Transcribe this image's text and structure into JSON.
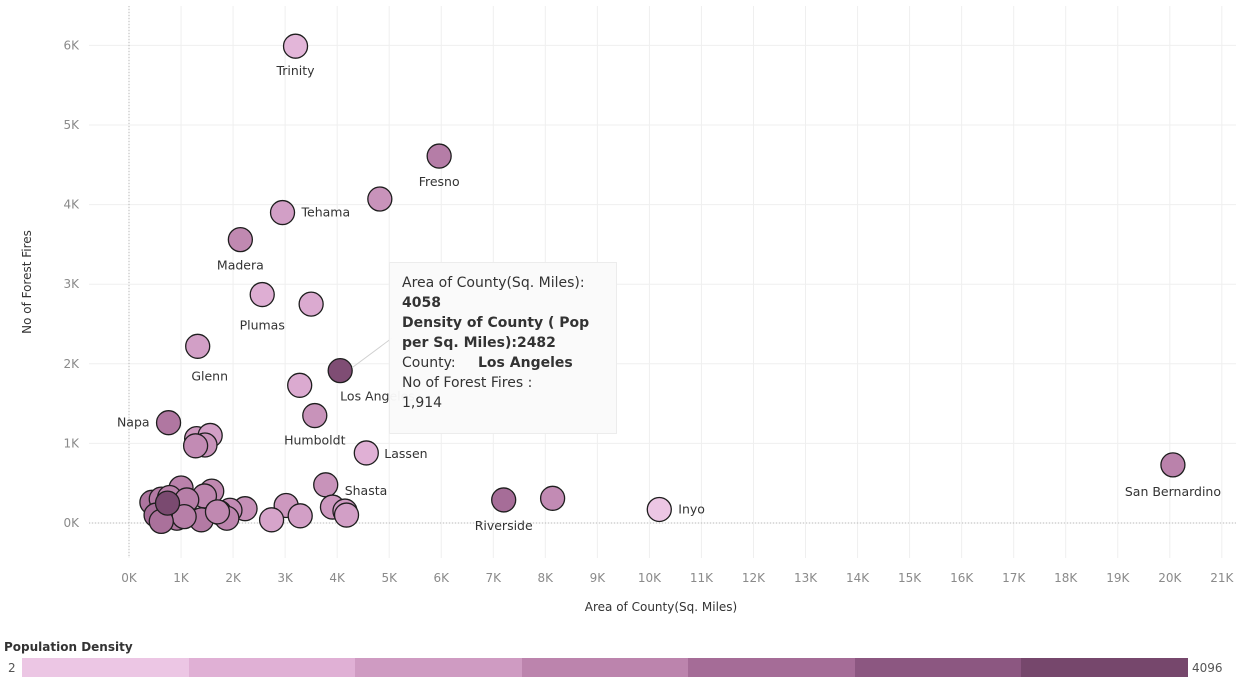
{
  "chart_data": {
    "type": "scatter",
    "title": "",
    "xlabel": "Area of County(Sq. Miles)",
    "ylabel": "No of Forest Fires",
    "xlim": [
      -800,
      21300
    ],
    "ylim": [
      -450,
      6450
    ],
    "x_ticks": [
      "0K",
      "1K",
      "2K",
      "3K",
      "4K",
      "5K",
      "6K",
      "7K",
      "8K",
      "9K",
      "10K",
      "11K",
      "12K",
      "13K",
      "14K",
      "15K",
      "16K",
      "17K",
      "18K",
      "19K",
      "20K",
      "21K"
    ],
    "y_ticks": [
      "0K",
      "1K",
      "2K",
      "3K",
      "4K",
      "5K",
      "6K"
    ],
    "grid": true,
    "color_legend": {
      "title": "Population Density",
      "min": "2",
      "max": "4096",
      "steps": [
        "#ecc6e4",
        "#e0b0d5",
        "#cf9bc2",
        "#bc84ad",
        "#a56c97",
        "#8c5781",
        "#76476c"
      ]
    },
    "points": [
      {
        "label": "Trinity",
        "x": 3200,
        "y": 5990,
        "density": 5
      },
      {
        "label": "Fresno",
        "x": 5960,
        "y": 4610,
        "density": 130
      },
      {
        "label": "",
        "x": 4820,
        "y": 4070,
        "density": 40
      },
      {
        "label": "Tehama",
        "x": 2950,
        "y": 3900,
        "density": 20
      },
      {
        "label": "Madera",
        "x": 2140,
        "y": 3560,
        "density": 70
      },
      {
        "label": "Plumas",
        "x": 2560,
        "y": 2870,
        "density": 8
      },
      {
        "label": "",
        "x": 3500,
        "y": 2750,
        "density": 10
      },
      {
        "label": "Glenn",
        "x": 1320,
        "y": 2220,
        "density": 20
      },
      {
        "label": "Los Angeles",
        "x": 4058,
        "y": 1914,
        "density": 2482
      },
      {
        "label": "",
        "x": 3280,
        "y": 1730,
        "density": 10
      },
      {
        "label": "Humboldt",
        "x": 3570,
        "y": 1350,
        "density": 40
      },
      {
        "label": "Napa",
        "x": 760,
        "y": 1260,
        "density": 180
      },
      {
        "label": "",
        "x": 1300,
        "y": 1060,
        "density": 30
      },
      {
        "label": "",
        "x": 1560,
        "y": 1100,
        "density": 20
      },
      {
        "label": "",
        "x": 1460,
        "y": 980,
        "density": 40
      },
      {
        "label": "",
        "x": 1280,
        "y": 970,
        "density": 60
      },
      {
        "label": "Lassen",
        "x": 4560,
        "y": 880,
        "density": 7
      },
      {
        "label": "San Bernardino",
        "x": 20060,
        "y": 730,
        "density": 100
      },
      {
        "label": "Shasta",
        "x": 3780,
        "y": 480,
        "density": 40
      },
      {
        "label": "",
        "x": 1000,
        "y": 440,
        "density": 100
      },
      {
        "label": "",
        "x": 1590,
        "y": 400,
        "density": 70
      },
      {
        "label": "",
        "x": 1450,
        "y": 340,
        "density": 80
      },
      {
        "label": "Riverside",
        "x": 7200,
        "y": 290,
        "density": 300
      },
      {
        "label": "",
        "x": 8140,
        "y": 310,
        "density": 60
      },
      {
        "label": "Inyo",
        "x": 10190,
        "y": 170,
        "density": 2
      },
      {
        "label": "",
        "x": 440,
        "y": 260,
        "density": 200
      },
      {
        "label": "",
        "x": 620,
        "y": 300,
        "density": 150
      },
      {
        "label": "",
        "x": 780,
        "y": 320,
        "density": 100
      },
      {
        "label": "",
        "x": 1110,
        "y": 290,
        "density": 120
      },
      {
        "label": "",
        "x": 2230,
        "y": 180,
        "density": 50
      },
      {
        "label": "",
        "x": 3020,
        "y": 220,
        "density": 30
      },
      {
        "label": "",
        "x": 3910,
        "y": 200,
        "density": 30
      },
      {
        "label": "",
        "x": 4150,
        "y": 150,
        "density": 25
      },
      {
        "label": "",
        "x": 1940,
        "y": 160,
        "density": 60
      },
      {
        "label": "",
        "x": 1740,
        "y": 130,
        "density": 90
      },
      {
        "label": "",
        "x": 3290,
        "y": 90,
        "density": 20
      },
      {
        "label": "",
        "x": 2740,
        "y": 40,
        "density": 15
      },
      {
        "label": "",
        "x": 4180,
        "y": 100,
        "density": 20
      },
      {
        "label": "",
        "x": 1880,
        "y": 60,
        "density": 90
      },
      {
        "label": "",
        "x": 1390,
        "y": 40,
        "density": 150
      },
      {
        "label": "",
        "x": 520,
        "y": 100,
        "density": 300
      },
      {
        "label": "",
        "x": 920,
        "y": 60,
        "density": 200
      },
      {
        "label": "",
        "x": 1060,
        "y": 80,
        "density": 120
      },
      {
        "label": "",
        "x": 620,
        "y": 20,
        "density": 250
      },
      {
        "label": "",
        "x": 1700,
        "y": 140,
        "density": 70
      },
      {
        "label": "",
        "x": 740,
        "y": 250,
        "density": 3300
      }
    ],
    "tooltip": {
      "area_label": "Area of County(Sq. Miles):",
      "area_value": "4058",
      "density_text": "Density of County ( Pop per Sq. Miles):2482",
      "county_label": "County:",
      "county_value": "Los Angeles",
      "fires_label": "No of Forest Fires :",
      "fires_value": "1,914"
    }
  }
}
